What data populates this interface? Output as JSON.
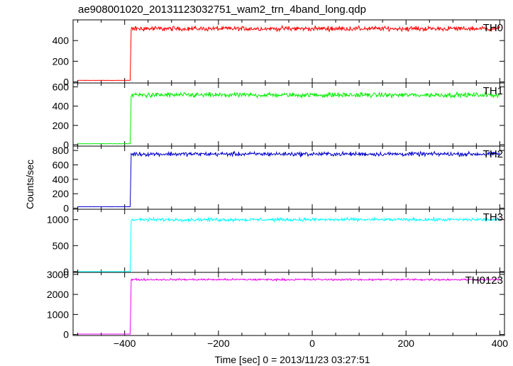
{
  "chart_data": {
    "type": "line",
    "title": "ae908001020_20131123032751_wam2_trn_4band_long.qdp",
    "xlabel": "Time [sec] 0 = 2013/11/23 03:27:51",
    "ylabel": "Counts/sec",
    "xlim": [
      -510,
      410
    ],
    "x_ticks": [
      -400,
      -200,
      0,
      200,
      400
    ],
    "x_tick_labels": [
      "−400",
      "−200",
      "0",
      "200",
      "400"
    ],
    "onset_time": -388,
    "series": [
      {
        "name": "TH0",
        "color": "#ff0000",
        "ylim": [
          -10,
          600
        ],
        "y_ticks": [
          0,
          200,
          400
        ],
        "pre_level": 15,
        "post_level": 515,
        "noise": 22,
        "t_start": -500,
        "t_end": 400
      },
      {
        "name": "TH1",
        "color": "#00ee00",
        "ylim": [
          -15,
          640
        ],
        "y_ticks": [
          0,
          200,
          400,
          600
        ],
        "pre_level": 10,
        "post_level": 515,
        "noise": 24,
        "t_start": -500,
        "t_end": 400
      },
      {
        "name": "TH2",
        "color": "#0000cc",
        "ylim": [
          -15,
          860
        ],
        "y_ticks": [
          0,
          200,
          400,
          600,
          800
        ],
        "pre_level": 20,
        "post_level": 750,
        "noise": 28,
        "t_start": -500,
        "t_end": 400
      },
      {
        "name": "TH3",
        "color": "#00ffff",
        "ylim": [
          -15,
          1200
        ],
        "y_ticks": [
          0,
          500,
          1000
        ],
        "pre_level": 0,
        "post_level": 1000,
        "noise": 30,
        "t_start": -500,
        "t_end": 400
      },
      {
        "name": "TH0123",
        "color": "#ee00ee",
        "ylim": [
          -50,
          3100
        ],
        "y_ticks": [
          0,
          1000,
          2000,
          3000
        ],
        "pre_level": 20,
        "post_level": 2740,
        "noise": 45,
        "t_start": -500,
        "t_end": 400
      }
    ]
  }
}
